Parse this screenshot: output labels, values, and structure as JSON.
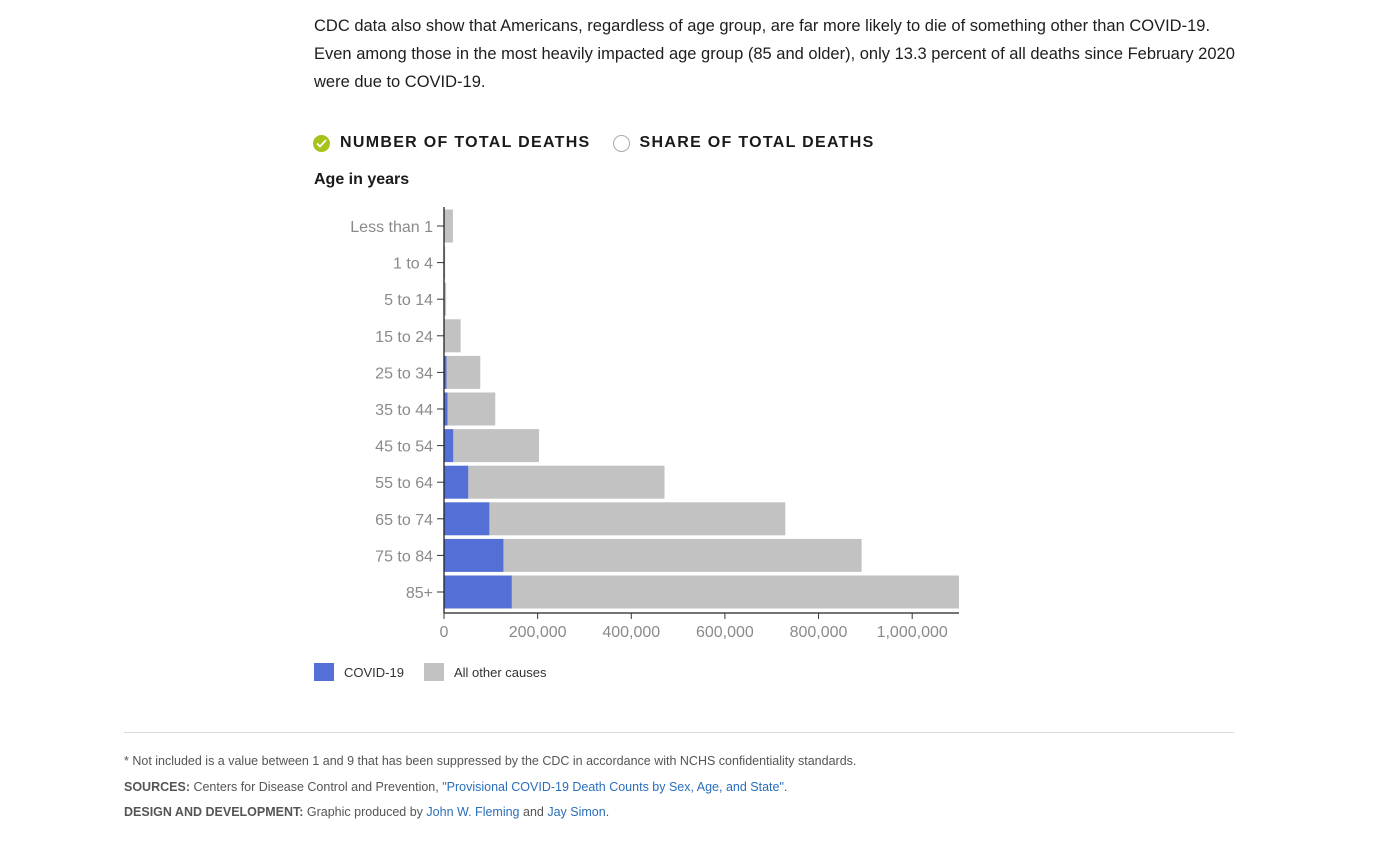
{
  "intro_text": "CDC data also show that Americans, regardless of age group, are far more likely to die of something other than COVID-19. Even among those in the most heavily impacted age group (85 and older), only 13.3 percent of all deaths since February 2020 were due to COVID-19.",
  "toggles": [
    {
      "label": "NUMBER OF TOTAL DEATHS",
      "selected": true,
      "icon": "check-icon"
    },
    {
      "label": "SHARE OF TOTAL DEATHS",
      "selected": false,
      "icon": "radio-empty-icon"
    }
  ],
  "colors": {
    "covid": "#5470d6",
    "other": "#c2c2c2",
    "toggle_active": "#a6c31a",
    "link": "#2a6ebb"
  },
  "chart_data": {
    "type": "bar",
    "orientation": "horizontal",
    "stacked": true,
    "ylabel": "Age in years",
    "categories": [
      "Less than 1",
      "1 to 4",
      "5 to 14",
      "15 to 24",
      "25 to 34",
      "35 to 44",
      "45 to 54",
      "55 to 64",
      "65 to 74",
      "75 to 84",
      "85+"
    ],
    "series": [
      {
        "name": "COVID-19",
        "values": [
          50,
          30,
          120,
          1500,
          5500,
          7500,
          20000,
          52000,
          97000,
          127000,
          145000
        ]
      },
      {
        "name": "All other causes",
        "values": [
          19000,
          2500,
          4500,
          34000,
          72000,
          102000,
          183000,
          419000,
          632000,
          765000,
          955000
        ]
      }
    ],
    "xlim": [
      0,
      1100000
    ],
    "xticks": [
      0,
      200000,
      400000,
      600000,
      800000,
      1000000
    ],
    "xtick_labels": [
      "0",
      "200,000",
      "400,000",
      "600,000",
      "800,000",
      "1,000,000"
    ],
    "grid": false,
    "legend_position": "bottom-left"
  },
  "legend": [
    {
      "label": "COVID-19",
      "color": "#5470d6"
    },
    {
      "label": "All other causes",
      "color": "#c2c2c2"
    }
  ],
  "footnotes": {
    "note": "* Not included is a value between 1 and 9 that has been suppressed by the CDC in accordance with NCHS confidentiality standards.",
    "sources_label": "SOURCES:",
    "sources_text": " Centers for Disease Control and Prevention, ",
    "sources_link": "\"Provisional COVID-19 Death Counts by Sex, Age, and State\"",
    "sources_end": ".",
    "design_label": "DESIGN AND DEVELOPMENT:",
    "design_text": " Graphic produced by ",
    "author1": "John W. Fleming",
    "and_text": " and ",
    "author2": "Jay Simon",
    "design_end": "."
  }
}
